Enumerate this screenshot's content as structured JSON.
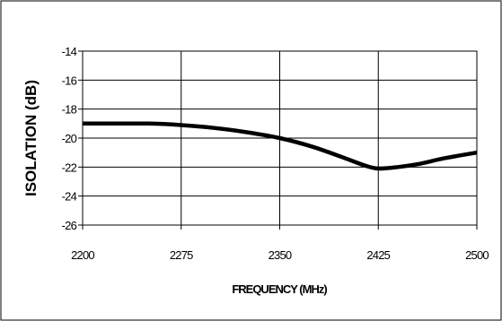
{
  "chart_data": {
    "type": "line",
    "title": "",
    "xlabel": "FREQUENCY (MHz)",
    "ylabel": "ISOLATION (dB)",
    "xlim": [
      2200,
      2500
    ],
    "ylim": [
      -26,
      -14
    ],
    "x_ticks": [
      2200,
      2275,
      2350,
      2425,
      2500
    ],
    "y_ticks": [
      -14,
      -16,
      -18,
      -20,
      -22,
      -24,
      -26
    ],
    "x_tick_labels": [
      "2200",
      "2275",
      "2350",
      "2425",
      "2500"
    ],
    "y_tick_labels": [
      "-14",
      "-16",
      "-18",
      "-20",
      "-22",
      "-24",
      "-26"
    ],
    "grid": true,
    "legend": "none",
    "line_color": "#000000",
    "series": [
      {
        "x": [
          2200,
          2225,
          2250,
          2275,
          2300,
          2325,
          2350,
          2375,
          2400,
          2415,
          2425,
          2440,
          2455,
          2475,
          2500
        ],
        "y": [
          -19.0,
          -19.0,
          -19.0,
          -19.1,
          -19.3,
          -19.6,
          -20.0,
          -20.6,
          -21.4,
          -21.9,
          -22.1,
          -22.0,
          -21.8,
          -21.4,
          -21.0
        ]
      }
    ]
  }
}
